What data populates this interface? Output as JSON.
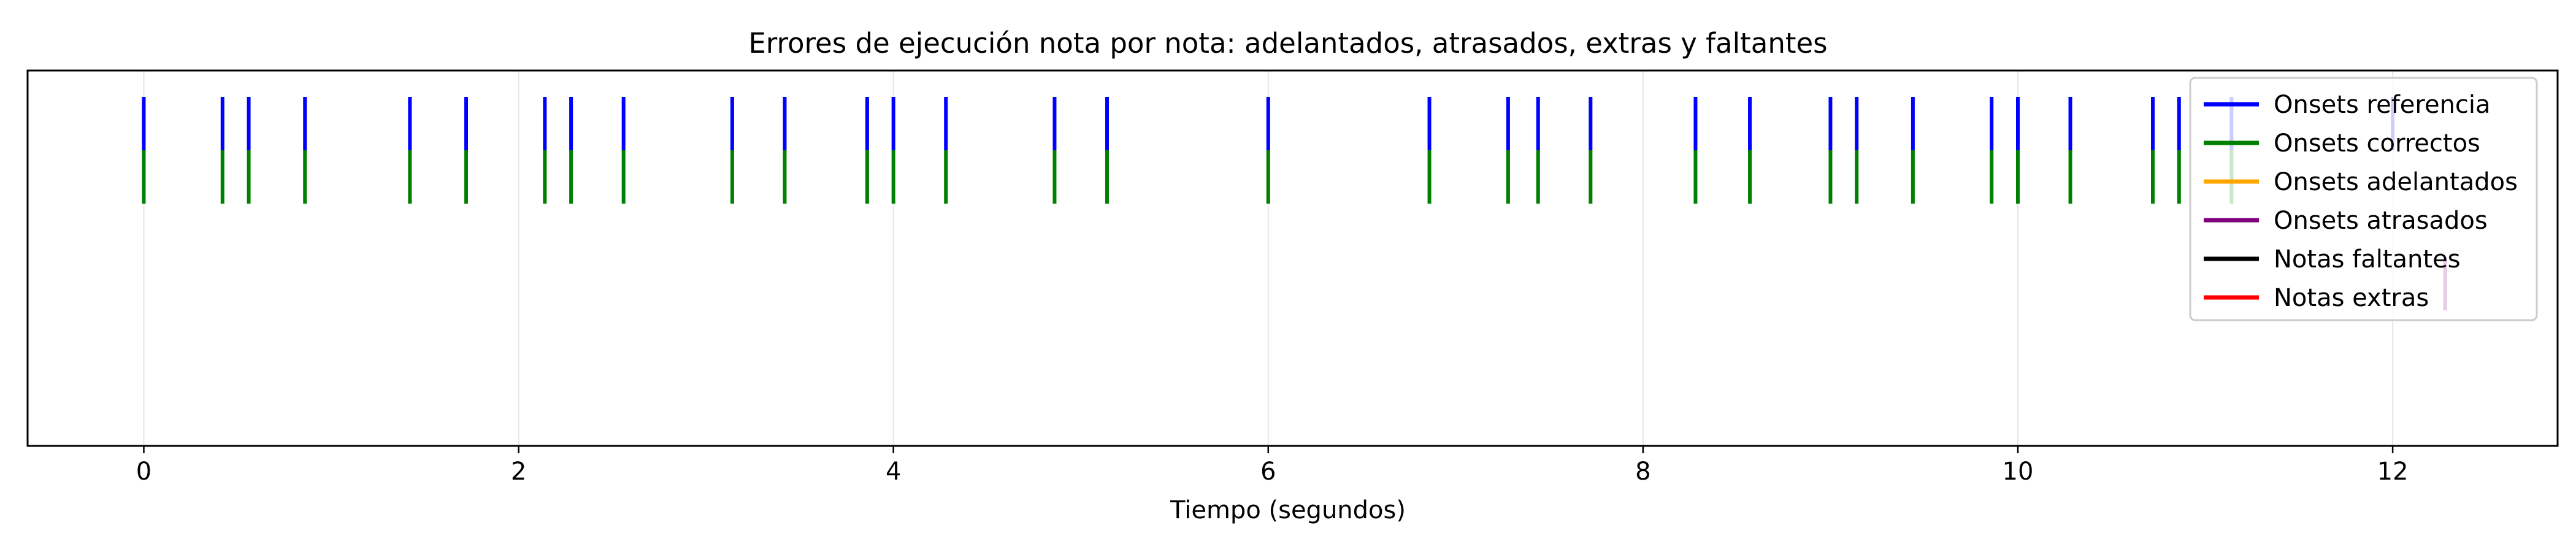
{
  "chart_data": {
    "type": "event-plot",
    "title": "Errores de ejecución nota por nota: adelantados, atrasados, extras y faltantes",
    "xlabel": "Tiempo (segundos)",
    "ylabel": "",
    "xlim": [
      -0.62,
      12.88
    ],
    "xticks": [
      0,
      2,
      4,
      6,
      8,
      10,
      12
    ],
    "xtick_labels": [
      "0",
      "2",
      "4",
      "6",
      "8",
      "10",
      "12"
    ],
    "grid": "vertical",
    "legend_position": "top-right",
    "series": [
      {
        "name": "Onsets referencia",
        "color": "#0000ff",
        "x": [
          0.0,
          0.42,
          0.56,
          0.86,
          1.42,
          1.72,
          2.14,
          2.28,
          2.56,
          3.14,
          3.42,
          3.86,
          4.0,
          4.28,
          4.86,
          5.14,
          6.0,
          6.86,
          7.28,
          7.44,
          7.72,
          8.28,
          8.57,
          9.0,
          9.14,
          9.44,
          9.86,
          10.0,
          10.28,
          10.72,
          10.86,
          11.14,
          12.0
        ]
      },
      {
        "name": "Onsets correctos",
        "color": "#008000",
        "x": [
          0.0,
          0.42,
          0.56,
          0.86,
          1.42,
          1.72,
          2.14,
          2.28,
          2.56,
          3.14,
          3.42,
          3.86,
          4.0,
          4.28,
          4.86,
          5.14,
          6.0,
          6.86,
          7.28,
          7.44,
          7.72,
          8.28,
          8.57,
          9.0,
          9.14,
          9.44,
          9.86,
          10.0,
          10.28,
          10.72,
          10.86,
          11.14
        ]
      },
      {
        "name": "Onsets adelantados",
        "color": "#ffa500",
        "x": []
      },
      {
        "name": "Onsets atrasados",
        "color": "#800080",
        "x": [
          12.28
        ]
      },
      {
        "name": "Notas faltantes",
        "color": "#000000",
        "x": []
      },
      {
        "name": "Notas extras",
        "color": "#ff0000",
        "x": []
      }
    ]
  }
}
